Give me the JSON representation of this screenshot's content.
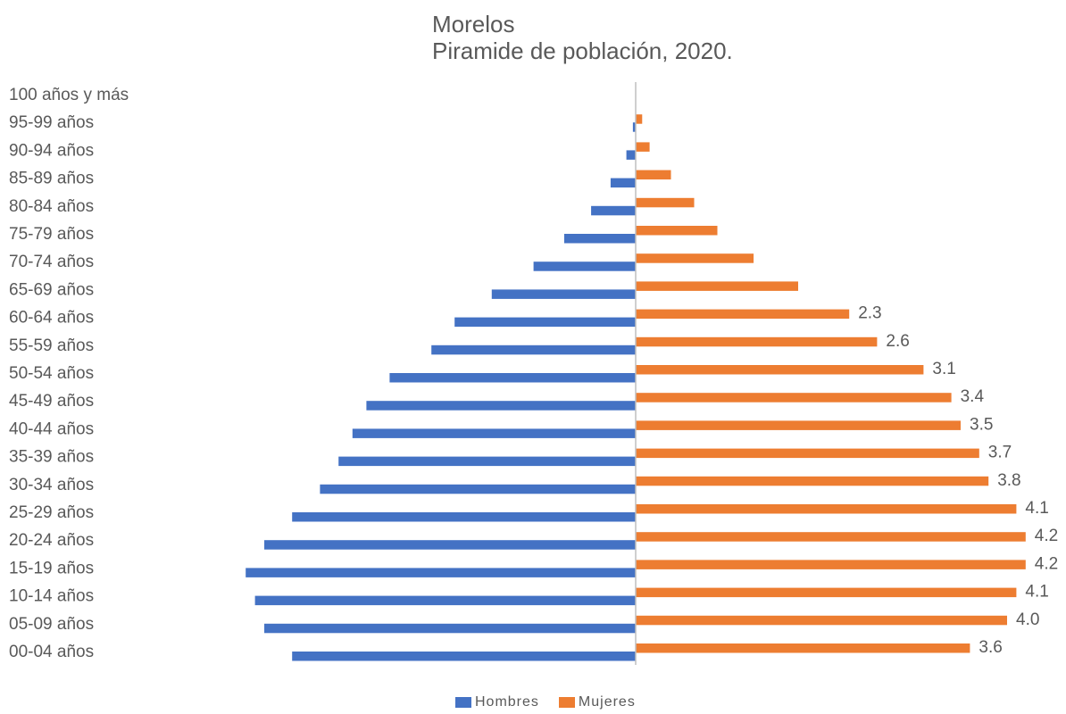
{
  "chart_data": {
    "type": "bar",
    "orientation": "horizontal",
    "layout": "population-pyramid",
    "title": "Morelos",
    "subtitle": "Piramide de población, 2020.",
    "categories": [
      "00-04 años",
      "05-09 años",
      "10-14 años",
      "15-19 años",
      "20-24 años",
      "25-29 años",
      "30-34 años",
      "35-39 años",
      "40-44 años",
      "45-49 años",
      "50-54 años",
      "55-59 años",
      "60-64 años",
      "65-69 años",
      "70-74 años",
      "75-79 años",
      "80-84 años",
      "85-89 años",
      "90-94 años",
      "95-99 años",
      "100 años y más"
    ],
    "series": [
      {
        "name": "Hombres",
        "color": "#4472C4",
        "side": "left",
        "values": [
          3.7,
          4.0,
          4.1,
          4.2,
          4.0,
          3.7,
          3.4,
          3.2,
          3.05,
          2.9,
          2.65,
          2.2,
          1.95,
          1.55,
          1.1,
          0.77,
          0.48,
          0.27,
          0.1,
          0.03,
          0.0
        ]
      },
      {
        "name": "Mujeres",
        "color": "#ED7D31",
        "side": "right",
        "values": [
          3.6,
          4.0,
          4.1,
          4.2,
          4.2,
          4.1,
          3.8,
          3.7,
          3.5,
          3.4,
          3.1,
          2.6,
          2.3,
          1.75,
          1.27,
          0.88,
          0.63,
          0.38,
          0.15,
          0.07,
          0.0
        ]
      }
    ],
    "data_labels": {
      "Mujeres": [
        "3.6",
        "4.0",
        "4.1",
        "4.2",
        "4.2",
        "4.1",
        "3.8",
        "3.7",
        "3.5",
        "3.4",
        "3.1",
        "2.6",
        "2.3",
        "",
        "",
        "",
        "",
        "",
        "",
        "",
        ""
      ]
    },
    "xlim": [
      0,
      4.2
    ],
    "gridlines": false,
    "legend_position": "bottom"
  },
  "colors": {
    "axis": "#BFBFBF",
    "text": "#595959"
  }
}
